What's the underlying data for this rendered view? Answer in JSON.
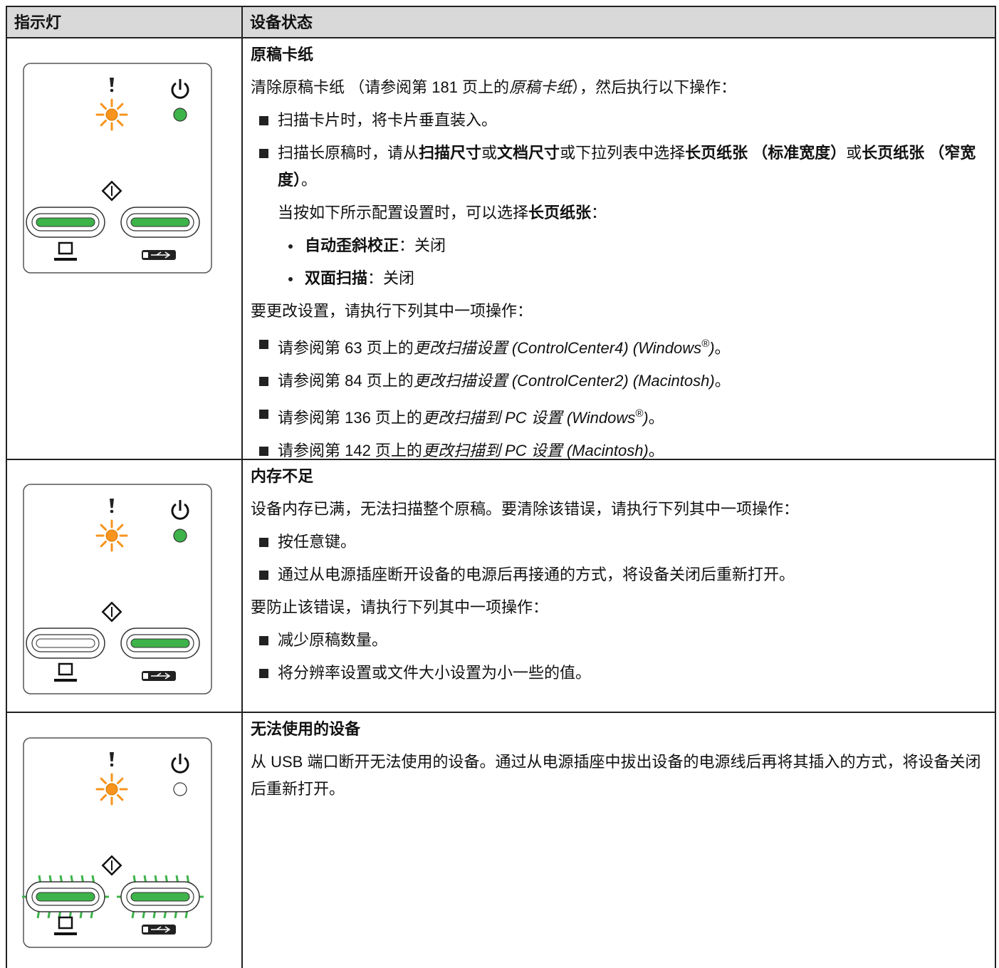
{
  "header": {
    "col1": "指示灯",
    "col2": "设备状态"
  },
  "rows": [
    {
      "title": "原稿卡纸",
      "lines": [
        [
          "清除原稿卡纸 （请参阅第 181 页上的",
          "原稿卡纸",
          "），然后执行以下操作："
        ],
        [
          "扫描卡片时，将卡片垂直装入。"
        ],
        [
          "扫描长原稿时，请从",
          "扫描尺寸",
          "或",
          "文档尺寸",
          "或下拉列表中选择",
          "长页纸张 （标准宽度）",
          "或",
          "长页纸张 （窄宽度）",
          "。"
        ],
        [
          "当按如下所示配置设置时，可以选择",
          "长页纸张",
          "："
        ],
        [
          "自动歪斜校正",
          "：关闭"
        ],
        [
          "双面扫描",
          "：关闭"
        ],
        [
          "要更改设置，请执行下列其中一项操作："
        ],
        [
          "请参阅第 63 页上的",
          "更改扫描设置 (ControlCenter4) (Windows",
          "®",
          ")",
          "。"
        ],
        [
          "请参阅第 84 页上的",
          "更改扫描设置 (ControlCenter2) (Macintosh)",
          "。"
        ],
        [
          "请参阅第 136 页上的",
          "更改扫描到 PC 设置 (Windows",
          "®",
          ")",
          "。"
        ],
        [
          "请参阅第 142 页上的",
          "更改扫描到 PC 设置 (Macintosh)",
          "。"
        ]
      ]
    },
    {
      "title": "内存不足",
      "lines": [
        [
          "设备内存已满，无法扫描整个原稿。要清除该错误，请执行下列其中一项操作："
        ],
        [
          "按任意键。"
        ],
        [
          "通过从电源插座断开设备的电源后再接通的方式，将设备关闭后重新打开。"
        ],
        [
          "要防止该错误，请执行下列其中一项操作："
        ],
        [
          "减少原稿数量。"
        ],
        [
          "将分辨率设置或文件大小设置为小一些的值。"
        ]
      ]
    },
    {
      "title": "无法使用的设备",
      "lines": [
        [
          "从 USB 端口断开无法使用的设备。通过从电源插座中拔出设备的电源线后再将其插入的方式，将设备关闭后重新打开。"
        ]
      ]
    }
  ]
}
